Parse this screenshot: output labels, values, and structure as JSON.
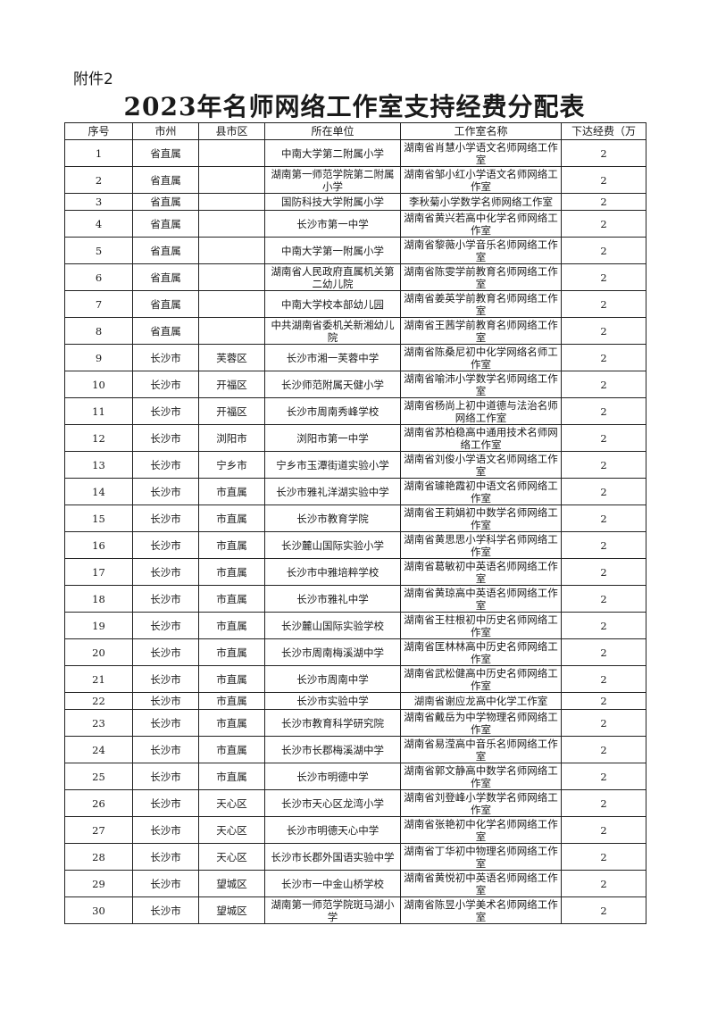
{
  "attachment_label": "附件2",
  "title": "2023年名师网络工作室支持经费分配表",
  "table": {
    "headers": [
      "序号",
      "市州",
      "县市区",
      "所在单位",
      "工作室名称",
      "下达经费（万"
    ],
    "rows": [
      [
        "1",
        "省直属",
        "",
        "中南大学第二附属小学",
        "湖南省肖慧小学语文名师网络工作室",
        "2"
      ],
      [
        "2",
        "省直属",
        "",
        "湖南第一师范学院第二附属小学",
        "湖南省邹小红小学语文名师网络工作室",
        "2"
      ],
      [
        "3",
        "省直属",
        "",
        "国防科技大学附属小学",
        "李秋菊小学数学名师网络工作室",
        "2"
      ],
      [
        "4",
        "省直属",
        "",
        "长沙市第一中学",
        "湖南省黄兴若高中化学名师网络工作室",
        "2"
      ],
      [
        "5",
        "省直属",
        "",
        "中南大学第一附属小学",
        "湖南省黎薇小学音乐名师网络工作室",
        "2"
      ],
      [
        "6",
        "省直属",
        "",
        "湖南省人民政府直属机关第二幼儿院",
        "湖南省陈雯学前教育名师网络工作室",
        "2"
      ],
      [
        "7",
        "省直属",
        "",
        "中南大学校本部幼儿园",
        "湖南省姜英学前教育名师网络工作室",
        "2"
      ],
      [
        "8",
        "省直属",
        "",
        "中共湖南省委机关新湘幼儿院",
        "湖南省王茜学前教育名师网络工作室",
        "2"
      ],
      [
        "9",
        "长沙市",
        "芙蓉区",
        "长沙市湘一芙蓉中学",
        "湖南省陈桑尼初中化学网络名师工作室",
        "2"
      ],
      [
        "10",
        "长沙市",
        "开福区",
        "长沙师范附属天健小学",
        "湖南省喻沛小学数学名师网络工作室",
        "2"
      ],
      [
        "11",
        "长沙市",
        "开福区",
        "长沙市周南秀峰学校",
        "湖南省杨尚上初中道德与法治名师网络工作室",
        "2"
      ],
      [
        "12",
        "长沙市",
        "浏阳市",
        "浏阳市第一中学",
        "湖南省苏柏稳高中通用技术名师网络工作室",
        "2"
      ],
      [
        "13",
        "长沙市",
        "宁乡市",
        "宁乡市玉潭街道实验小学",
        "湖南省刘俊小学语文名师网络工作室",
        "2"
      ],
      [
        "14",
        "长沙市",
        "市直属",
        "长沙市雅礼洋湖实验中学",
        "湖南省璩艳霞初中语文名师网络工作室",
        "2"
      ],
      [
        "15",
        "长沙市",
        "市直属",
        "长沙市教育学院",
        "湖南省王莉娟初中数学名师网络工作室",
        "2"
      ],
      [
        "16",
        "长沙市",
        "市直属",
        "长沙麓山国际实验小学",
        "湖南省黄思思小学科学名师网络工作室",
        "2"
      ],
      [
        "17",
        "长沙市",
        "市直属",
        "长沙市中雅培粹学校",
        "湖南省葛敏初中英语名师网络工作室",
        "2"
      ],
      [
        "18",
        "长沙市",
        "市直属",
        "长沙市雅礼中学",
        "湖南省黄琼高中英语名师网络工作室",
        "2"
      ],
      [
        "19",
        "长沙市",
        "市直属",
        "长沙麓山国际实验学校",
        "湖南省王柱根初中历史名师网络工作室",
        "2"
      ],
      [
        "20",
        "长沙市",
        "市直属",
        "长沙市周南梅溪湖中学",
        "湖南省匡林林高中历史名师网络工作室",
        "2"
      ],
      [
        "21",
        "长沙市",
        "市直属",
        "长沙市周南中学",
        "湖南省武松健高中历史名师网络工作室",
        "2"
      ],
      [
        "22",
        "长沙市",
        "市直属",
        "长沙市实验中学",
        "湖南省谢应龙高中化学工作室",
        "2"
      ],
      [
        "23",
        "长沙市",
        "市直属",
        "长沙市教育科学研究院",
        "湖南省戴岳为中学物理名师网络工作室",
        "2"
      ],
      [
        "24",
        "长沙市",
        "市直属",
        "长沙市长郡梅溪湖中学",
        "湖南省易滢高中音乐名师网络工作室",
        "2"
      ],
      [
        "25",
        "长沙市",
        "市直属",
        "长沙市明德中学",
        "湖南省郭文静高中数学名师网络工作室",
        "2"
      ],
      [
        "26",
        "长沙市",
        "天心区",
        "长沙市天心区龙湾小学",
        "湖南省刘登峰小学数学名师网络工作室",
        "2"
      ],
      [
        "27",
        "长沙市",
        "天心区",
        "长沙市明德天心中学",
        "湖南省张艳初中化学名师网络工作室",
        "2"
      ],
      [
        "28",
        "长沙市",
        "天心区",
        "长沙市长郡外国语实验中学",
        "湖南省丁华初中物理名师网络工作室",
        "2"
      ],
      [
        "29",
        "长沙市",
        "望城区",
        "长沙市一中金山桥学校",
        "湖南省黄悦初中英语名师网络工作室",
        "2"
      ],
      [
        "30",
        "长沙市",
        "望城区",
        "湖南第一师范学院斑马湖小学",
        "湖南省陈昱小学美术名师网络工作室",
        "2"
      ]
    ]
  }
}
